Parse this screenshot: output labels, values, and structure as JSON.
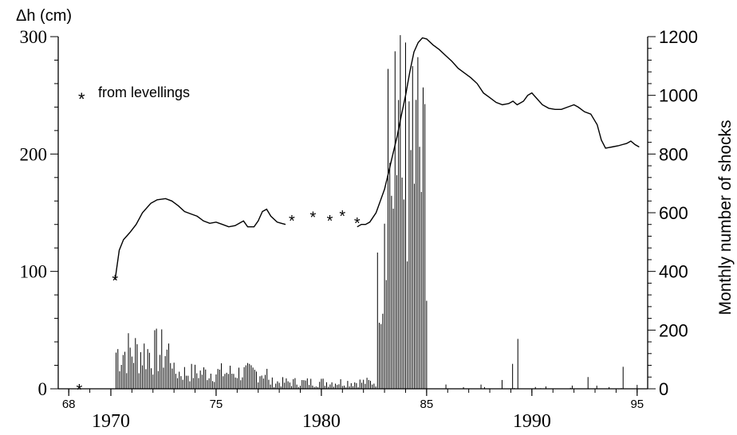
{
  "chart_data": {
    "type": "bar",
    "left_axis_label": "Δh (cm)",
    "right_axis_label": "Monthly number of shocks",
    "legend": {
      "symbol": "*",
      "label": "from levellings"
    },
    "x_ticks": [
      {
        "value": 1968,
        "label": "68",
        "major": false
      },
      {
        "value": 1970,
        "label": "1970",
        "major": true
      },
      {
        "value": 1975,
        "label": "75",
        "major": false
      },
      {
        "value": 1980,
        "label": "1980",
        "major": true
      },
      {
        "value": 1985,
        "label": "85",
        "major": false
      },
      {
        "value": 1990,
        "label": "1990",
        "major": true
      },
      {
        "value": 1995,
        "label": "95",
        "major": false
      }
    ],
    "xlim": [
      1967.5,
      1995.5
    ],
    "left_ticks": [
      "0",
      "100",
      "200",
      "300"
    ],
    "left_ylim": [
      0,
      300
    ],
    "right_ticks": [
      "0",
      "200",
      "400",
      "600",
      "800",
      "1000",
      "1200"
    ],
    "right_ylim": [
      0,
      1200
    ],
    "uplift_series": {
      "name": "Δh",
      "points": [
        [
          1970.2,
          93
        ],
        [
          1970.4,
          118
        ],
        [
          1970.6,
          127
        ],
        [
          1970.9,
          133
        ],
        [
          1971.2,
          140
        ],
        [
          1971.5,
          150
        ],
        [
          1971.9,
          158
        ],
        [
          1972.2,
          161
        ],
        [
          1972.6,
          162
        ],
        [
          1972.9,
          160
        ],
        [
          1973.2,
          156
        ],
        [
          1973.5,
          151
        ],
        [
          1973.8,
          149
        ],
        [
          1974.1,
          147
        ],
        [
          1974.4,
          143
        ],
        [
          1974.7,
          141
        ],
        [
          1975.0,
          142
        ],
        [
          1975.3,
          140
        ],
        [
          1975.6,
          138
        ],
        [
          1975.9,
          139
        ],
        [
          1976.1,
          141
        ],
        [
          1976.3,
          143
        ],
        [
          1976.5,
          138
        ],
        [
          1976.8,
          138
        ],
        [
          1977.0,
          143
        ],
        [
          1977.2,
          151
        ],
        [
          1977.4,
          153
        ],
        [
          1977.6,
          147
        ],
        [
          1977.9,
          142
        ],
        [
          1978.1,
          141
        ],
        [
          1978.3,
          140
        ]
      ],
      "points_recent": [
        [
          1981.7,
          138
        ],
        [
          1981.9,
          140
        ],
        [
          1982.1,
          140
        ],
        [
          1982.3,
          142
        ],
        [
          1982.6,
          150
        ],
        [
          1982.8,
          160
        ],
        [
          1983.0,
          170
        ],
        [
          1983.2,
          185
        ],
        [
          1983.4,
          200
        ],
        [
          1983.6,
          215
        ],
        [
          1983.8,
          233
        ],
        [
          1984.0,
          250
        ],
        [
          1984.2,
          270
        ],
        [
          1984.4,
          287
        ],
        [
          1984.6,
          295
        ],
        [
          1984.8,
          299
        ],
        [
          1985.0,
          298
        ],
        [
          1985.3,
          293
        ],
        [
          1985.6,
          289
        ],
        [
          1985.9,
          284
        ],
        [
          1986.2,
          279
        ],
        [
          1986.5,
          273
        ],
        [
          1986.8,
          269
        ],
        [
          1987.1,
          265
        ],
        [
          1987.4,
          260
        ],
        [
          1987.7,
          252
        ],
        [
          1988.0,
          248
        ],
        [
          1988.3,
          244
        ],
        [
          1988.6,
          242
        ],
        [
          1988.9,
          243
        ],
        [
          1989.1,
          245
        ],
        [
          1989.3,
          242
        ],
        [
          1989.6,
          245
        ],
        [
          1989.8,
          250
        ],
        [
          1990.0,
          252
        ],
        [
          1990.2,
          248
        ],
        [
          1990.5,
          242
        ],
        [
          1990.8,
          239
        ],
        [
          1991.1,
          238
        ],
        [
          1991.4,
          238
        ],
        [
          1991.7,
          240
        ],
        [
          1992.0,
          242
        ],
        [
          1992.2,
          240
        ],
        [
          1992.5,
          236
        ],
        [
          1992.8,
          234
        ],
        [
          1993.1,
          225
        ],
        [
          1993.3,
          212
        ],
        [
          1993.5,
          205
        ],
        [
          1993.8,
          206
        ],
        [
          1994.1,
          207
        ],
        [
          1994.3,
          208
        ],
        [
          1994.5,
          209
        ],
        [
          1994.7,
          211
        ],
        [
          1994.9,
          208
        ],
        [
          1995.1,
          206
        ]
      ]
    },
    "levelling_points": [
      [
        1968.5,
        0
      ],
      [
        1970.2,
        93
      ],
      [
        1978.6,
        144
      ],
      [
        1979.6,
        147
      ],
      [
        1980.4,
        144
      ],
      [
        1981.0,
        148
      ],
      [
        1981.7,
        142
      ]
    ],
    "shocks_monthly": {
      "name": "Monthly number of shocks",
      "x_range": [
        1970.25,
        1995.0
      ],
      "peak_events": [
        [
          1983.2,
          1090
        ],
        [
          1983.5,
          1150
        ],
        [
          1983.75,
          1205
        ],
        [
          1984.0,
          1180
        ],
        [
          1984.3,
          1100
        ],
        [
          1984.6,
          1130
        ],
        [
          1985.0,
          300
        ],
        [
          1988.6,
          30
        ],
        [
          1989.1,
          85
        ],
        [
          1989.3,
          170
        ],
        [
          1992.7,
          40
        ],
        [
          1994.3,
          75
        ]
      ]
    },
    "bar_color": "#000000",
    "line_color": "#000000"
  }
}
